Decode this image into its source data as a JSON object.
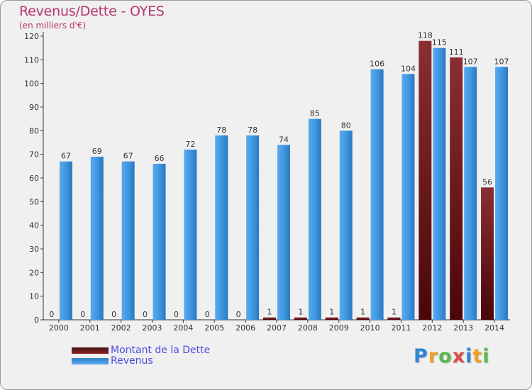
{
  "chart_data": {
    "type": "bar",
    "title": "Revenus/Dette - OYES",
    "subtitle": "(en milliers d'€)",
    "categories": [
      "2000",
      "2001",
      "2002",
      "2003",
      "2004",
      "2005",
      "2006",
      "2007",
      "2008",
      "2009",
      "2010",
      "2011",
      "2012",
      "2013",
      "2014"
    ],
    "series": [
      {
        "name": "Montant de la Dette",
        "color": "#7a1e22",
        "values": [
          0,
          0,
          0,
          0,
          0,
          0,
          0,
          1,
          1,
          1,
          1,
          1,
          118,
          111,
          56
        ]
      },
      {
        "name": "Revenus",
        "color": "#3d95de",
        "values": [
          67,
          69,
          67,
          66,
          72,
          78,
          78,
          74,
          85,
          80,
          106,
          104,
          115,
          107,
          107
        ]
      }
    ],
    "ylim": [
      0,
      120
    ],
    "yticks": [
      0,
      10,
      20,
      30,
      40,
      50,
      60,
      70,
      80,
      90,
      100,
      110,
      120
    ],
    "grid": false,
    "legend_position": "bottom-left"
  },
  "brand": {
    "text": "Proxiti",
    "letters": [
      {
        "ch": "P",
        "color": "#2e86d6"
      },
      {
        "ch": "r",
        "color": "#f0a020"
      },
      {
        "ch": "o",
        "color": "#58b848"
      },
      {
        "ch": "x",
        "color": "#e04848"
      },
      {
        "ch": "i",
        "color": "#2e86d6"
      },
      {
        "ch": "t",
        "color": "#f0a020"
      },
      {
        "ch": "i",
        "color": "#58b848"
      }
    ]
  }
}
